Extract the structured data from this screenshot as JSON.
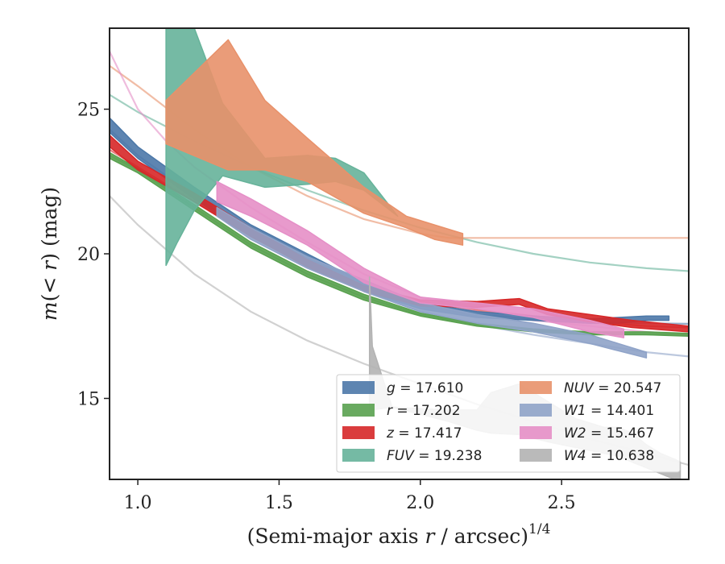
{
  "chart_data": {
    "type": "line",
    "title": "",
    "xlabel": "(Semi-major axis r / arcsec)",
    "xlabel_parts": {
      "pre": "(Semi-major axis ",
      "var": "r",
      "post": " / arcsec)",
      "sup": "1/4"
    },
    "ylabel": "m(< r) (mag)",
    "ylabel_parts": {
      "m": "m",
      "open": "(",
      "lt": "< ",
      "r": "r",
      "close": ")",
      "unit": " (mag)"
    },
    "xlim": [
      0.9,
      2.95
    ],
    "ylim": [
      27.8,
      12.2
    ],
    "y_inverted": true,
    "grid": false,
    "legend_position": "lower-right",
    "xticks": [
      1.0,
      1.5,
      2.0,
      2.5
    ],
    "xtick_labels": [
      "1.0",
      "1.5",
      "2.0",
      "2.5"
    ],
    "yticks": [
      15,
      20,
      25
    ],
    "ytick_labels": [
      "15",
      "20",
      "25"
    ],
    "series": [
      {
        "key": "g",
        "name": "g",
        "value": "17.610",
        "color": "#4c78a8",
        "model_x": [
          0.9,
          1.0,
          1.2,
          1.4,
          1.6,
          1.8,
          2.0,
          2.2,
          2.4,
          2.6,
          2.8,
          2.95
        ],
        "model_y": [
          24.3,
          23.4,
          22.0,
          20.7,
          19.7,
          18.8,
          18.2,
          17.9,
          17.75,
          17.65,
          17.6,
          17.58
        ],
        "band_x": [
          0.9,
          1.0,
          1.2,
          1.4,
          1.6,
          1.8,
          2.0,
          2.2,
          2.4,
          2.6,
          2.7,
          2.8,
          2.88
        ],
        "band_lo": [
          24.7,
          23.7,
          22.3,
          21.0,
          20.0,
          19.0,
          18.3,
          18.0,
          17.85,
          17.75,
          17.8,
          17.85,
          17.85
        ],
        "band_hi": [
          24.2,
          23.3,
          21.9,
          20.6,
          19.6,
          18.7,
          18.1,
          17.8,
          17.7,
          17.6,
          17.6,
          17.7,
          17.7
        ]
      },
      {
        "key": "r",
        "name": "r",
        "value": "17.202",
        "color": "#59a14f",
        "model_x": [
          0.9,
          1.0,
          1.2,
          1.4,
          1.6,
          1.8,
          2.0,
          2.2,
          2.4,
          2.6,
          2.8,
          2.95
        ],
        "model_y": [
          23.4,
          22.9,
          21.6,
          20.3,
          19.3,
          18.5,
          17.9,
          17.55,
          17.35,
          17.25,
          17.21,
          17.2
        ],
        "band_x": [
          0.9,
          1.0,
          1.2,
          1.4,
          1.6,
          1.8,
          2.0,
          2.2,
          2.4,
          2.6,
          2.8,
          2.95
        ],
        "band_lo": [
          23.5,
          22.95,
          21.7,
          20.4,
          19.4,
          18.6,
          17.95,
          17.6,
          17.4,
          17.3,
          17.3,
          17.25
        ],
        "band_hi": [
          23.3,
          22.8,
          21.5,
          20.2,
          19.2,
          18.4,
          17.85,
          17.5,
          17.3,
          17.2,
          17.2,
          17.15
        ]
      },
      {
        "key": "z",
        "name": "z",
        "value": "17.417",
        "color": "#d62728",
        "model_x": [
          0.9,
          1.0,
          1.2,
          1.4,
          1.6,
          1.8,
          2.0,
          2.2,
          2.4,
          2.6,
          2.8,
          2.95
        ],
        "model_y": [
          23.6,
          23.0,
          21.8,
          20.6,
          19.6,
          18.85,
          18.35,
          18.05,
          17.85,
          17.65,
          17.5,
          17.45
        ],
        "band_x": [
          0.9,
          1.0,
          1.2,
          1.4,
          1.6,
          1.8,
          2.0,
          2.2,
          2.35,
          2.45,
          2.6,
          2.75,
          2.95
        ],
        "band_lo": [
          24.1,
          23.2,
          22.1,
          20.9,
          19.8,
          18.9,
          18.4,
          18.35,
          18.45,
          18.1,
          17.9,
          17.7,
          17.5
        ],
        "band_hi": [
          23.7,
          22.9,
          21.8,
          20.6,
          19.55,
          18.7,
          18.2,
          18.15,
          18.25,
          17.9,
          17.65,
          17.45,
          17.3
        ]
      },
      {
        "key": "FUV",
        "name": "FUV",
        "value": "19.238",
        "color": "#66b39a",
        "model_x": [
          0.9,
          1.0,
          1.2,
          1.4,
          1.6,
          1.8,
          2.0,
          2.2,
          2.4,
          2.6,
          2.8,
          2.95
        ],
        "model_y": [
          25.5,
          24.9,
          23.9,
          23.0,
          22.2,
          21.5,
          20.9,
          20.4,
          20.0,
          19.7,
          19.5,
          19.4
        ],
        "band_x": [
          1.1,
          1.14,
          1.2,
          1.3,
          1.45,
          1.6,
          1.7,
          1.8,
          1.92
        ],
        "band_lo": [
          27.8,
          27.8,
          27.8,
          25.2,
          23.3,
          23.4,
          23.3,
          22.8,
          21.3
        ],
        "band_hi": [
          19.6,
          20.4,
          21.5,
          22.7,
          22.3,
          22.4,
          22.5,
          22.2,
          21.3
        ]
      },
      {
        "key": "NUV",
        "name": "NUV",
        "value": "20.547",
        "color": "#e8916a",
        "model_x": [
          0.9,
          1.0,
          1.2,
          1.4,
          1.6,
          1.8,
          2.0,
          2.1,
          2.2,
          2.4,
          2.6,
          2.8,
          2.95
        ],
        "model_y": [
          26.5,
          25.8,
          24.3,
          23.0,
          22.0,
          21.2,
          20.7,
          20.55,
          20.55,
          20.55,
          20.55,
          20.55,
          20.55
        ],
        "band_x": [
          1.1,
          1.32,
          1.45,
          1.6,
          1.8,
          1.95,
          2.05,
          2.15
        ],
        "band_lo": [
          25.3,
          27.4,
          25.3,
          24.0,
          22.3,
          21.3,
          21.0,
          20.7
        ],
        "band_hi": [
          23.8,
          22.9,
          22.9,
          22.5,
          21.4,
          20.9,
          20.5,
          20.3
        ]
      },
      {
        "key": "W1",
        "name": "W1",
        "value": "14.401",
        "color": "#8fa3c8",
        "model_x": [
          1.8,
          2.0,
          2.2,
          2.4,
          2.6,
          2.8,
          2.95
        ],
        "model_y": [
          18.7,
          18.0,
          17.55,
          17.2,
          16.9,
          16.6,
          16.45
        ],
        "band_x": [
          1.28,
          1.4,
          1.6,
          1.8,
          2.0,
          2.2,
          2.4,
          2.6,
          2.7,
          2.8
        ],
        "band_lo": [
          21.6,
          20.9,
          19.9,
          19.1,
          18.3,
          17.9,
          17.6,
          17.2,
          16.9,
          16.6
        ],
        "band_hi": [
          21.3,
          20.5,
          19.5,
          18.7,
          18.0,
          17.6,
          17.3,
          16.9,
          16.65,
          16.4
        ]
      },
      {
        "key": "W2",
        "name": "W2",
        "value": "15.467",
        "color": "#e58fc7",
        "model_x": [
          0.9,
          1.0,
          1.1,
          1.2,
          1.4,
          1.6,
          1.8,
          2.0,
          2.2,
          2.4,
          2.6,
          2.8,
          2.95
        ],
        "model_y": [
          27.0,
          25.0,
          23.9,
          23.0,
          21.6,
          20.4,
          19.3,
          18.5,
          18.0,
          17.7,
          17.5,
          17.3,
          17.2
        ],
        "band_x": [
          1.28,
          1.4,
          1.6,
          1.8,
          2.0,
          2.2,
          2.4,
          2.6,
          2.72
        ],
        "band_lo": [
          22.5,
          21.9,
          20.8,
          19.5,
          18.5,
          18.3,
          18.1,
          17.7,
          17.4
        ],
        "band_hi": [
          21.8,
          21.3,
          20.3,
          19.0,
          18.3,
          18.1,
          17.8,
          17.3,
          17.1
        ]
      },
      {
        "key": "W4",
        "name": "W4",
        "value": "10.638",
        "color": "#b3b3b3",
        "model_x": [
          0.9,
          1.0,
          1.2,
          1.4,
          1.6,
          1.8,
          2.0,
          2.2,
          2.4,
          2.6,
          2.8,
          2.95
        ],
        "model_y": [
          22.0,
          21.0,
          19.3,
          18.0,
          17.0,
          16.2,
          15.5,
          14.8,
          14.2,
          13.6,
          13.1,
          12.7
        ],
        "band_x": [
          1.82,
          1.83,
          1.9,
          2.0,
          2.1,
          2.2,
          2.25,
          2.35,
          2.45,
          2.55,
          2.65,
          2.7,
          2.75,
          2.8,
          2.85,
          2.9,
          2.92
        ],
        "band_lo": [
          19.2,
          16.8,
          14.7,
          14.65,
          14.6,
          14.6,
          15.2,
          15.5,
          14.9,
          14.3,
          14.0,
          14.0,
          13.8,
          13.4,
          13.1,
          12.9,
          12.8
        ],
        "band_hi": [
          14.6,
          14.6,
          14.7,
          14.45,
          14.2,
          13.9,
          13.8,
          13.75,
          13.5,
          13.3,
          13.1,
          13.0,
          12.8,
          12.6,
          12.4,
          12.2,
          12.2
        ]
      }
    ],
    "legend_order": [
      "g",
      "r",
      "z",
      "FUV",
      "NUV",
      "W1",
      "W2",
      "W4"
    ]
  }
}
